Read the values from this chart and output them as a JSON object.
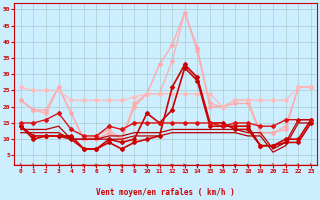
{
  "xlabel": "Vent moyen/en rafales ( km/h )",
  "xlim": [
    -0.5,
    23.5
  ],
  "ylim": [
    2,
    52
  ],
  "yticks": [
    5,
    10,
    15,
    20,
    25,
    30,
    35,
    40,
    45,
    50
  ],
  "xticks": [
    0,
    1,
    2,
    3,
    4,
    5,
    6,
    7,
    8,
    9,
    10,
    11,
    12,
    13,
    14,
    15,
    16,
    17,
    18,
    19,
    20,
    21,
    22,
    23
  ],
  "bg_color": "#cceeff",
  "grid_color": "#aacccc",
  "lines": [
    {
      "y": [
        22,
        19,
        19,
        26,
        18,
        10,
        10,
        12,
        10,
        20,
        24,
        33,
        39,
        49,
        38,
        20,
        20,
        21,
        21,
        12,
        12,
        13,
        26,
        26
      ],
      "color": "#ffaaaa",
      "lw": 1.0,
      "marker": "D",
      "ms": 2.0,
      "alpha": 1.0
    },
    {
      "y": [
        22,
        19,
        18,
        26,
        18,
        10,
        11,
        13,
        10,
        21,
        24,
        24,
        34,
        49,
        37,
        21,
        20,
        22,
        22,
        12,
        12,
        14,
        26,
        26
      ],
      "color": "#ffaaaa",
      "lw": 1.0,
      "marker": "D",
      "ms": 2.0,
      "alpha": 0.85
    },
    {
      "y": [
        26,
        25,
        25,
        25,
        22,
        22,
        22,
        22,
        22,
        23,
        24,
        24,
        24,
        24,
        24,
        24,
        20,
        22,
        22,
        22,
        22,
        22,
        26,
        26
      ],
      "color": "#ffbbbb",
      "lw": 1.0,
      "marker": "D",
      "ms": 2.0,
      "alpha": 0.9
    },
    {
      "y": [
        14,
        11,
        11,
        11,
        11,
        7,
        7,
        9,
        7,
        9,
        10,
        11,
        26,
        33,
        29,
        15,
        15,
        13,
        13,
        8,
        8,
        10,
        10,
        16
      ],
      "color": "#cc0000",
      "lw": 1.2,
      "marker": "D",
      "ms": 2.0,
      "alpha": 1.0
    },
    {
      "y": [
        14,
        10,
        11,
        11,
        10,
        7,
        7,
        10,
        9,
        10,
        18,
        15,
        19,
        32,
        28,
        14,
        14,
        14,
        14,
        8,
        8,
        9,
        9,
        15
      ],
      "color": "#cc0000",
      "lw": 1.2,
      "marker": "D",
      "ms": 2.0,
      "alpha": 1.0
    },
    {
      "y": [
        15,
        15,
        16,
        18,
        13,
        11,
        11,
        14,
        13,
        15,
        15,
        15,
        15,
        15,
        15,
        15,
        14,
        15,
        15,
        14,
        14,
        16,
        16,
        16
      ],
      "color": "#dd1111",
      "lw": 1.0,
      "marker": "D",
      "ms": 2.0,
      "alpha": 1.0
    },
    {
      "y": [
        13,
        13,
        13,
        14,
        10,
        10,
        10,
        11,
        11,
        12,
        12,
        12,
        13,
        13,
        13,
        13,
        13,
        13,
        12,
        12,
        7,
        9,
        16,
        16
      ],
      "color": "#bb0000",
      "lw": 0.9,
      "marker": null,
      "ms": 0,
      "alpha": 1.0
    },
    {
      "y": [
        12,
        12,
        12,
        12,
        10,
        10,
        10,
        10,
        10,
        11,
        11,
        11,
        12,
        12,
        12,
        12,
        12,
        12,
        11,
        11,
        6,
        8,
        15,
        15
      ],
      "color": "#bb0000",
      "lw": 0.9,
      "marker": null,
      "ms": 0,
      "alpha": 1.0
    }
  ],
  "wind_arrows": {
    "angles_deg": [
      45,
      60,
      60,
      45,
      30,
      90,
      90,
      90,
      135,
      90,
      90,
      90,
      90,
      90,
      135,
      135,
      135,
      120,
      210,
      210,
      45,
      30,
      45,
      60
    ],
    "color": "#cc0000"
  },
  "arrow_color": "#cc0000",
  "title_color": "#cc0000",
  "axis_color": "#cc0000",
  "tick_color": "#cc0000"
}
